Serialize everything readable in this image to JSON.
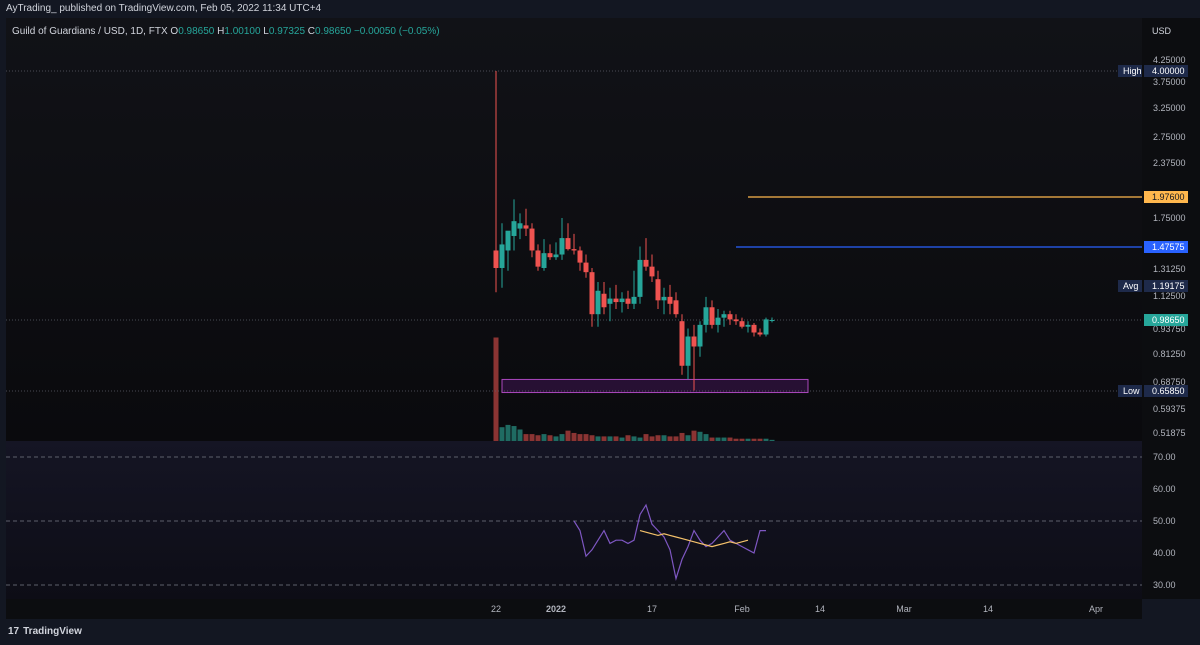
{
  "header": {
    "publisher": "AyTrading_ published on TradingView.com, Feb 05, 2022 11:34 UTC+4"
  },
  "symbol": {
    "name": "Guild of Guardians / USD, 1D, FTX",
    "o_label": "O",
    "o": "0.98650",
    "h_label": "H",
    "h": "1.00100",
    "l_label": "L",
    "l": "0.97325",
    "c_label": "C",
    "c": "0.98650",
    "change": "−0.00050 (−0.05%)"
  },
  "axis": {
    "currency": "USD"
  },
  "footer": {
    "brand": "TradingView"
  },
  "colors": {
    "up": "#26a69a",
    "down": "#ef5350",
    "rsi": "#7e57c2",
    "rsi_ma": "#f5c26b",
    "orange_level": "#ffb74d",
    "blue_level": "#2962ff"
  },
  "chart_data": [
    {
      "type": "candlestick",
      "title": "Guild of Guardians / USD, 1D, FTX",
      "ylim": [
        0.5,
        4.4
      ],
      "yticks": [
        "4.25000",
        "3.75000",
        "3.25000",
        "2.75000",
        "2.37500",
        "1.75000",
        "1.31250",
        "1.12500",
        "0.93750",
        "0.81250",
        "0.68750",
        "0.59375",
        "0.51875"
      ],
      "xticks": [
        {
          "label": "22",
          "day": 0
        },
        {
          "label": "2022",
          "day": 10
        },
        {
          "label": "17",
          "day": 26
        },
        {
          "label": "Feb",
          "day": 41
        },
        {
          "label": "14",
          "day": 54
        },
        {
          "label": "Mar",
          "day": 68
        },
        {
          "label": "14",
          "day": 82
        },
        {
          "label": "Apr",
          "day": 100
        }
      ],
      "levels": [
        {
          "name": "High",
          "label": "High",
          "value": 4.0,
          "text": "4.00000",
          "color": "#1e2a4a",
          "start_day": -100
        },
        {
          "name": "Orange level",
          "label": "",
          "value": 1.976,
          "text": "1.97600",
          "color": "#ffb74d",
          "start_day": 42
        },
        {
          "name": "Blue level",
          "label": "",
          "value": 1.47575,
          "text": "1.47575",
          "color": "#2962ff",
          "start_day": 40
        },
        {
          "name": "Avg",
          "label": "Avg",
          "value": 1.19175,
          "text": "1.19175",
          "color": "#1e2a4a",
          "start_day": null
        },
        {
          "name": "Last price",
          "label": "",
          "value": 0.9865,
          "text": "0.98650",
          "color": "#26a69a",
          "start_day": -100
        },
        {
          "name": "Low",
          "label": "Low",
          "value": 0.6585,
          "text": "0.65850",
          "color": "#1e2a4a",
          "start_day": -100
        }
      ],
      "zone": {
        "from_day": 1,
        "to_day": 52,
        "low": 0.66,
        "high": 0.69
      },
      "candles": [
        {
          "day": 0,
          "o": 1.45,
          "h": 4.0,
          "l": 1.15,
          "c": 1.32
        },
        {
          "day": 1,
          "o": 1.32,
          "h": 1.7,
          "l": 1.18,
          "c": 1.5
        },
        {
          "day": 2,
          "o": 1.45,
          "h": 1.62,
          "l": 1.3,
          "c": 1.63
        },
        {
          "day": 3,
          "o": 1.58,
          "h": 1.95,
          "l": 1.45,
          "c": 1.72
        },
        {
          "day": 4,
          "o": 1.65,
          "h": 1.8,
          "l": 1.55,
          "c": 1.7
        },
        {
          "day": 5,
          "o": 1.68,
          "h": 1.85,
          "l": 1.58,
          "c": 1.65
        },
        {
          "day": 6,
          "o": 1.65,
          "h": 1.7,
          "l": 1.4,
          "c": 1.45
        },
        {
          "day": 7,
          "o": 1.45,
          "h": 1.5,
          "l": 1.3,
          "c": 1.33
        },
        {
          "day": 8,
          "o": 1.32,
          "h": 1.55,
          "l": 1.3,
          "c": 1.43
        },
        {
          "day": 9,
          "o": 1.43,
          "h": 1.5,
          "l": 1.38,
          "c": 1.4
        },
        {
          "day": 10,
          "o": 1.4,
          "h": 1.52,
          "l": 1.38,
          "c": 1.42
        },
        {
          "day": 11,
          "o": 1.42,
          "h": 1.75,
          "l": 1.38,
          "c": 1.56
        },
        {
          "day": 12,
          "o": 1.56,
          "h": 1.7,
          "l": 1.45,
          "c": 1.46
        },
        {
          "day": 13,
          "o": 1.46,
          "h": 1.6,
          "l": 1.42,
          "c": 1.45
        },
        {
          "day": 14,
          "o": 1.45,
          "h": 1.48,
          "l": 1.3,
          "c": 1.36
        },
        {
          "day": 15,
          "o": 1.36,
          "h": 1.42,
          "l": 1.25,
          "c": 1.29
        },
        {
          "day": 16,
          "o": 1.29,
          "h": 1.32,
          "l": 0.95,
          "c": 1.02
        },
        {
          "day": 17,
          "o": 1.02,
          "h": 1.22,
          "l": 0.95,
          "c": 1.16
        },
        {
          "day": 18,
          "o": 1.14,
          "h": 1.22,
          "l": 1.02,
          "c": 1.06
        },
        {
          "day": 19,
          "o": 1.08,
          "h": 1.18,
          "l": 0.98,
          "c": 1.11
        },
        {
          "day": 20,
          "o": 1.11,
          "h": 1.2,
          "l": 1.05,
          "c": 1.09
        },
        {
          "day": 21,
          "o": 1.09,
          "h": 1.15,
          "l": 1.03,
          "c": 1.11
        },
        {
          "day": 22,
          "o": 1.11,
          "h": 1.16,
          "l": 1.05,
          "c": 1.08
        },
        {
          "day": 23,
          "o": 1.08,
          "h": 1.3,
          "l": 1.05,
          "c": 1.12
        },
        {
          "day": 24,
          "o": 1.12,
          "h": 1.48,
          "l": 1.08,
          "c": 1.38
        },
        {
          "day": 25,
          "o": 1.38,
          "h": 1.56,
          "l": 1.3,
          "c": 1.33
        },
        {
          "day": 26,
          "o": 1.33,
          "h": 1.42,
          "l": 1.22,
          "c": 1.26
        },
        {
          "day": 27,
          "o": 1.24,
          "h": 1.3,
          "l": 1.05,
          "c": 1.1
        },
        {
          "day": 28,
          "o": 1.1,
          "h": 1.18,
          "l": 1.02,
          "c": 1.12
        },
        {
          "day": 29,
          "o": 1.12,
          "h": 1.2,
          "l": 1.02,
          "c": 1.08
        },
        {
          "day": 30,
          "o": 1.1,
          "h": 1.15,
          "l": 1.0,
          "c": 1.02
        },
        {
          "day": 31,
          "o": 0.98,
          "h": 1.02,
          "l": 0.72,
          "c": 0.76
        },
        {
          "day": 32,
          "o": 0.76,
          "h": 0.94,
          "l": 0.7,
          "c": 0.9
        },
        {
          "day": 33,
          "o": 0.9,
          "h": 0.96,
          "l": 0.66,
          "c": 0.85
        },
        {
          "day": 34,
          "o": 0.85,
          "h": 0.98,
          "l": 0.8,
          "c": 0.96
        },
        {
          "day": 35,
          "o": 0.96,
          "h": 1.12,
          "l": 0.92,
          "c": 1.06
        },
        {
          "day": 36,
          "o": 1.06,
          "h": 1.1,
          "l": 0.94,
          "c": 0.96
        },
        {
          "day": 37,
          "o": 0.96,
          "h": 1.05,
          "l": 0.92,
          "c": 1.0
        },
        {
          "day": 38,
          "o": 1.0,
          "h": 1.04,
          "l": 0.95,
          "c": 1.02
        },
        {
          "day": 39,
          "o": 1.02,
          "h": 1.04,
          "l": 0.96,
          "c": 0.99
        },
        {
          "day": 40,
          "o": 0.99,
          "h": 1.02,
          "l": 0.96,
          "c": 0.98
        },
        {
          "day": 41,
          "o": 0.98,
          "h": 1.0,
          "l": 0.94,
          "c": 0.95
        },
        {
          "day": 42,
          "o": 0.95,
          "h": 0.98,
          "l": 0.92,
          "c": 0.96
        },
        {
          "day": 43,
          "o": 0.96,
          "h": 0.97,
          "l": 0.9,
          "c": 0.92
        },
        {
          "day": 44,
          "o": 0.92,
          "h": 0.94,
          "l": 0.9,
          "c": 0.91
        },
        {
          "day": 45,
          "o": 0.91,
          "h": 1.0,
          "l": 0.9,
          "c": 0.99
        },
        {
          "day": 46,
          "o": 0.9865,
          "h": 1.001,
          "l": 0.97325,
          "c": 0.9865
        }
      ],
      "volume": [
        9.0,
        1.2,
        1.4,
        1.3,
        1.0,
        0.6,
        0.6,
        0.5,
        0.6,
        0.5,
        0.4,
        0.6,
        0.9,
        0.7,
        0.6,
        0.6,
        0.5,
        0.4,
        0.4,
        0.4,
        0.4,
        0.3,
        0.5,
        0.4,
        0.3,
        0.6,
        0.4,
        0.5,
        0.5,
        0.4,
        0.4,
        0.7,
        0.5,
        0.9,
        0.8,
        0.6,
        0.3,
        0.3,
        0.3,
        0.3,
        0.2,
        0.2,
        0.2,
        0.2,
        0.2,
        0.2,
        0.1
      ]
    },
    {
      "type": "line",
      "title": "",
      "ylim": [
        25,
        75
      ],
      "yticks": [
        "70.00",
        "60.00",
        "50.00",
        "40.00",
        "30.00"
      ],
      "bands": [
        70,
        50,
        30
      ],
      "series": [
        {
          "name": "RSI",
          "color": "#7e57c2",
          "start_day": 13,
          "values": [
            50,
            47,
            39,
            41,
            44,
            47,
            43,
            44,
            44,
            43,
            44,
            52,
            55,
            49,
            47,
            45,
            41,
            32,
            38,
            42,
            47,
            44,
            42,
            43,
            45,
            47,
            44,
            43,
            42,
            41,
            40,
            47,
            47
          ]
        },
        {
          "name": "RSI MA",
          "color": "#f5c26b",
          "start_day": 24,
          "values": [
            47,
            46.5,
            46,
            45.5,
            46,
            45.5,
            45,
            44.5,
            44,
            43.5,
            43,
            42.5,
            42,
            42.5,
            43,
            43.5,
            43,
            43.5,
            44
          ]
        }
      ]
    }
  ]
}
